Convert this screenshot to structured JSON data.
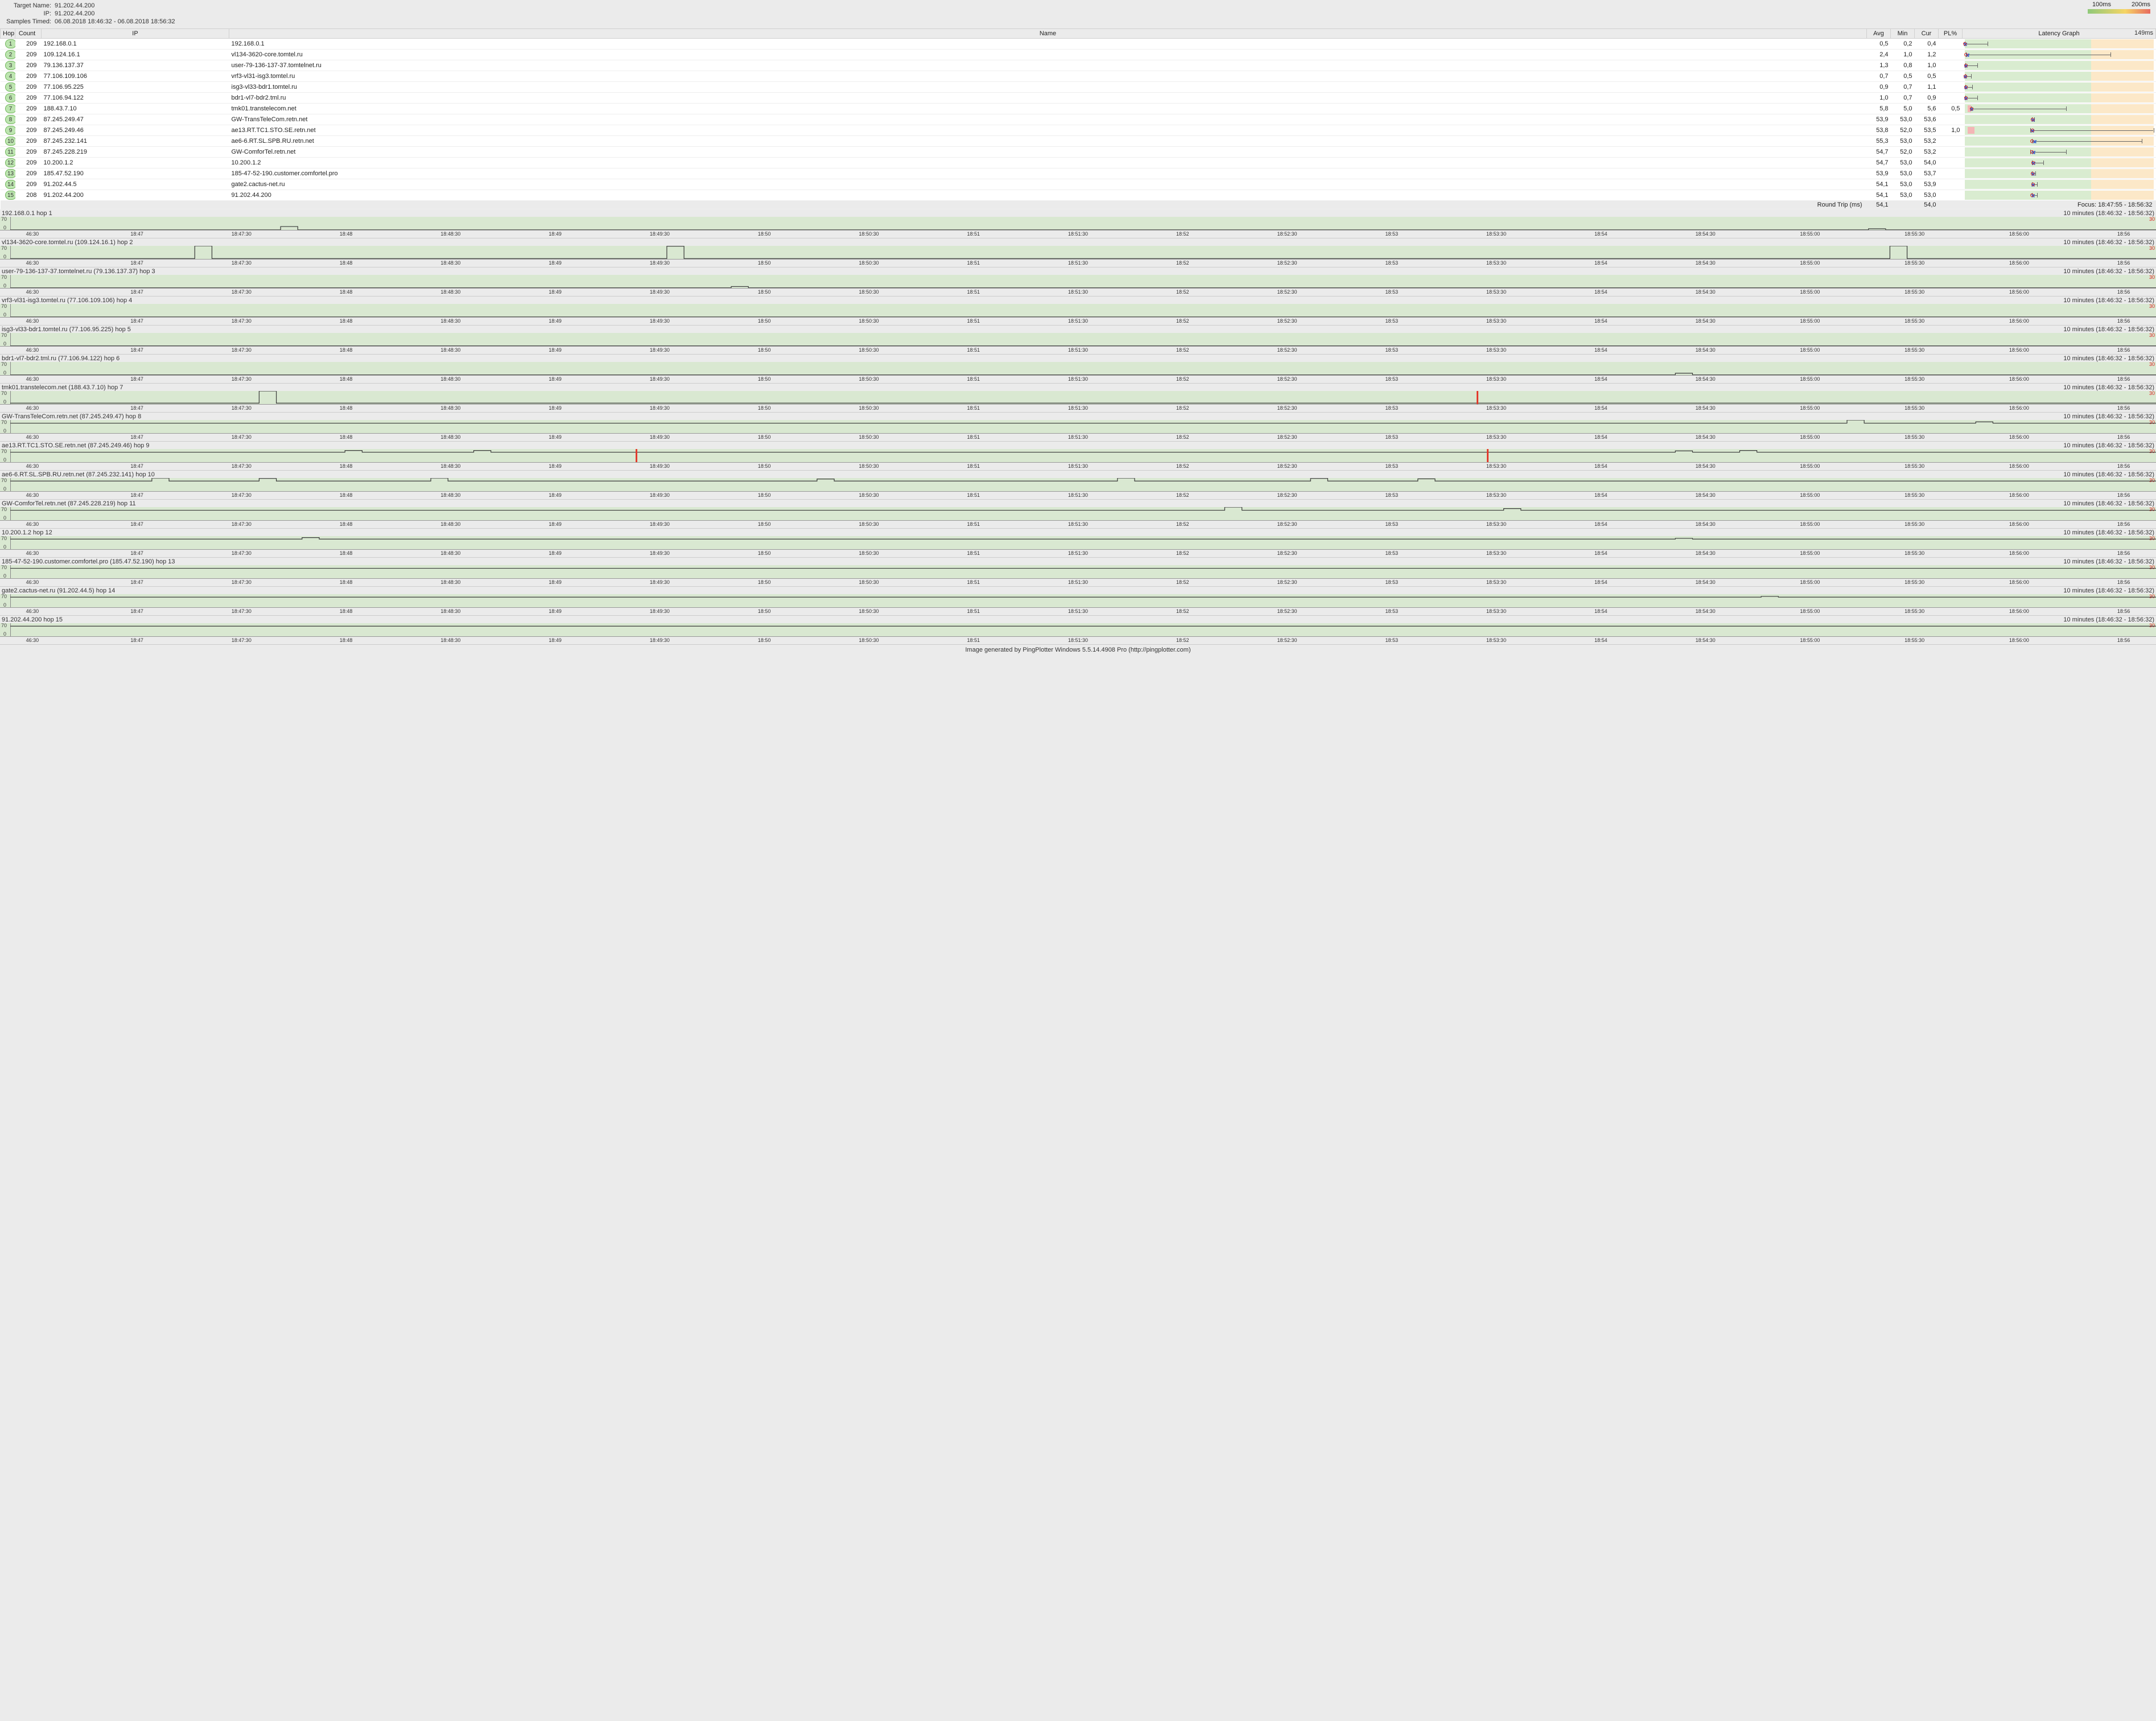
{
  "header": {
    "target_name_label": "Target Name:",
    "target_name": "91.202.44.200",
    "ip_label": "IP:",
    "ip": "91.202.44.200",
    "samples_label": "Samples Timed:",
    "samples": "06.08.2018 18:46:32 - 06.08.2018 18:56:32"
  },
  "legend": {
    "ms100": "100ms",
    "ms200": "200ms"
  },
  "columns": {
    "hop": "Hop",
    "count": "Count",
    "ip": "IP",
    "name": "Name",
    "avg": "Avg",
    "min": "Min",
    "cur": "Cur",
    "pl": "PL%",
    "graph": "Latency Graph",
    "graph_max": "149ms"
  },
  "latency_graph": {
    "max_ms": 149,
    "good_ms": 100,
    "warn_ms": 200,
    "good_color": "#d9ecd0",
    "warn_color": "#fce8c8"
  },
  "hop_colors": {
    "fill": "#bde5b0",
    "border": "#6fb45a",
    "text": "#333"
  },
  "hops": [
    {
      "n": 1,
      "count": 209,
      "ip": "192.168.0.1",
      "name": "192.168.0.1",
      "avg": "0,5",
      "min": "0,2",
      "cur": "0,4",
      "pl": "",
      "avg_ms": 0.5,
      "min_ms": 0.2,
      "max_ms": 18,
      "cur_ms": 0.4
    },
    {
      "n": 2,
      "count": 209,
      "ip": "109.124.16.1",
      "name": "vl134-3620-core.tomtel.ru",
      "avg": "2,4",
      "min": "1,0",
      "cur": "1,2",
      "pl": "",
      "avg_ms": 2.4,
      "min_ms": 1.0,
      "max_ms": 115,
      "cur_ms": 1.2
    },
    {
      "n": 3,
      "count": 209,
      "ip": "79.136.137.37",
      "name": "user-79-136-137-37.tomtelnet.ru",
      "avg": "1,3",
      "min": "0,8",
      "cur": "1,0",
      "pl": "",
      "avg_ms": 1.3,
      "min_ms": 0.8,
      "max_ms": 10,
      "cur_ms": 1.0
    },
    {
      "n": 4,
      "count": 209,
      "ip": "77.106.109.106",
      "name": "vrf3-vl31-isg3.tomtel.ru",
      "avg": "0,7",
      "min": "0,5",
      "cur": "0,5",
      "pl": "",
      "avg_ms": 0.7,
      "min_ms": 0.5,
      "max_ms": 5,
      "cur_ms": 0.5
    },
    {
      "n": 5,
      "count": 209,
      "ip": "77.106.95.225",
      "name": "isg3-vl33-bdr1.tomtel.ru",
      "avg": "0,9",
      "min": "0,7",
      "cur": "1,1",
      "pl": "",
      "avg_ms": 0.9,
      "min_ms": 0.7,
      "max_ms": 6,
      "cur_ms": 1.1
    },
    {
      "n": 6,
      "count": 209,
      "ip": "77.106.94.122",
      "name": "bdr1-vl7-bdr2.tml.ru",
      "avg": "1,0",
      "min": "0,7",
      "cur": "0,9",
      "pl": "",
      "avg_ms": 1.0,
      "min_ms": 0.7,
      "max_ms": 10,
      "cur_ms": 0.9
    },
    {
      "n": 7,
      "count": 209,
      "ip": "188.43.7.10",
      "name": "tmk01.transtelecom.net",
      "avg": "5,8",
      "min": "5,0",
      "cur": "5,6",
      "pl": "0,5",
      "avg_ms": 5.8,
      "min_ms": 5.0,
      "max_ms": 80,
      "cur_ms": 5.6
    },
    {
      "n": 8,
      "count": 209,
      "ip": "87.245.249.47",
      "name": "GW-TransTeleCom.retn.net",
      "avg": "53,9",
      "min": "53,0",
      "cur": "53,6",
      "pl": "",
      "avg_ms": 53.9,
      "min_ms": 53.0,
      "max_ms": 55,
      "cur_ms": 53.6
    },
    {
      "n": 9,
      "count": 209,
      "ip": "87.245.249.46",
      "name": "ae13.RT.TC1.STO.SE.retn.net",
      "avg": "53,8",
      "min": "52,0",
      "cur": "53,5",
      "pl": "1,0",
      "avg_ms": 53.8,
      "min_ms": 52.0,
      "max_ms": 149,
      "cur_ms": 53.5
    },
    {
      "n": 10,
      "count": 209,
      "ip": "87.245.232.141",
      "name": "ae6-6.RT.SL.SPB.RU.retn.net",
      "avg": "55,3",
      "min": "53,0",
      "cur": "53,2",
      "pl": "",
      "avg_ms": 55.3,
      "min_ms": 53.0,
      "max_ms": 140,
      "cur_ms": 53.2
    },
    {
      "n": 11,
      "count": 209,
      "ip": "87.245.228.219",
      "name": "GW-ComforTel.retn.net",
      "avg": "54,7",
      "min": "52,0",
      "cur": "53,2",
      "pl": "",
      "avg_ms": 54.7,
      "min_ms": 52.0,
      "max_ms": 80,
      "cur_ms": 53.2
    },
    {
      "n": 12,
      "count": 209,
      "ip": "10.200.1.2",
      "name": "10.200.1.2",
      "avg": "54,7",
      "min": "53,0",
      "cur": "54,0",
      "pl": "",
      "avg_ms": 54.7,
      "min_ms": 53.0,
      "max_ms": 62,
      "cur_ms": 54.0
    },
    {
      "n": 13,
      "count": 209,
      "ip": "185.47.52.190",
      "name": "185-47-52-190.customer.comfortel.pro",
      "avg": "53,9",
      "min": "53,0",
      "cur": "53,7",
      "pl": "",
      "avg_ms": 53.9,
      "min_ms": 53.0,
      "max_ms": 56,
      "cur_ms": 53.7
    },
    {
      "n": 14,
      "count": 209,
      "ip": "91.202.44.5",
      "name": "gate2.cactus-net.ru",
      "avg": "54,1",
      "min": "53,0",
      "cur": "53,9",
      "pl": "",
      "avg_ms": 54.1,
      "min_ms": 53.0,
      "max_ms": 57,
      "cur_ms": 53.9
    },
    {
      "n": 15,
      "count": 208,
      "ip": "91.202.44.200",
      "name": "91.202.44.200",
      "avg": "54,1",
      "min": "53,0",
      "cur": "53,0",
      "pl": "",
      "avg_ms": 54.1,
      "min_ms": 53.0,
      "max_ms": 57,
      "cur_ms": 53.0
    }
  ],
  "round_trip": {
    "label": "Round Trip (ms)",
    "avg": "54,1",
    "cur": "54,0"
  },
  "focus": {
    "label": "Focus:",
    "range": "18:47:55 - 18:56:32"
  },
  "timeline": {
    "y_max": 70,
    "y_min": 0,
    "y_max_right": 30,
    "range_label": "10 minutes (18:46:32 - 18:56:32)",
    "x_ticks": [
      "46:30",
      "18:47",
      "18:47:30",
      "18:48",
      "18:48:30",
      "18:49",
      "18:49:30",
      "18:50",
      "18:50:30",
      "18:51",
      "18:51:30",
      "18:52",
      "18:52:30",
      "18:53",
      "18:53:30",
      "18:54",
      "18:54:30",
      "18:55:00",
      "18:55:30",
      "18:56:00",
      "18:56"
    ],
    "strips": [
      {
        "title": "192.168.0.1 hop 1",
        "base": 0.5,
        "spikes": [
          {
            "x": 0.13,
            "h": 18
          },
          {
            "x": 0.87,
            "h": 6
          }
        ],
        "losses": []
      },
      {
        "title": "vl134-3620-core.tomtel.ru (109.124.16.1) hop 2",
        "base": 2,
        "spikes": [
          {
            "x": 0.09,
            "h": 70
          },
          {
            "x": 0.31,
            "h": 68
          },
          {
            "x": 0.88,
            "h": 70
          }
        ],
        "losses": []
      },
      {
        "title": "user-79-136-137-37.tomtelnet.ru (79.136.137.37) hop 3",
        "base": 1,
        "spikes": [
          {
            "x": 0.34,
            "h": 8
          }
        ],
        "losses": []
      },
      {
        "title": "vrf3-vl31-isg3.tomtel.ru (77.106.109.106) hop 4",
        "base": 0.7,
        "spikes": [],
        "losses": []
      },
      {
        "title": "isg3-vl33-bdr1.tomtel.ru (77.106.95.225) hop 5",
        "base": 0.9,
        "spikes": [],
        "losses": []
      },
      {
        "title": "bdr1-vl7-bdr2.tml.ru (77.106.94.122) hop 6",
        "base": 1,
        "spikes": [
          {
            "x": 0.78,
            "h": 10
          }
        ],
        "losses": []
      },
      {
        "title": "tmk01.transtelecom.net (188.43.7.10) hop 7",
        "base": 5,
        "spikes": [
          {
            "x": 0.12,
            "h": 70
          }
        ],
        "losses": [
          {
            "x": 0.68
          }
        ]
      },
      {
        "title": "GW-TransTeleCom.retn.net (87.245.249.47) hop 8",
        "base": 53,
        "spikes": [
          {
            "x": 0.86,
            "h": 70
          },
          {
            "x": 0.92,
            "h": 60
          }
        ],
        "losses": []
      },
      {
        "title": "ae13.RT.TC1.STO.SE.retn.net (87.245.249.46) hop 9",
        "base": 53,
        "spikes": [
          {
            "x": 0.16,
            "h": 62
          },
          {
            "x": 0.22,
            "h": 62
          },
          {
            "x": 0.78,
            "h": 60
          },
          {
            "x": 0.81,
            "h": 62
          }
        ],
        "losses": [
          {
            "x": 0.29
          },
          {
            "x": 0.685
          }
        ]
      },
      {
        "title": "ae6-6.RT.SL.SPB.RU.retn.net (87.245.232.141) hop 10",
        "base": 54,
        "spikes": [
          {
            "x": 0.07,
            "h": 70
          },
          {
            "x": 0.12,
            "h": 68
          },
          {
            "x": 0.2,
            "h": 70
          },
          {
            "x": 0.38,
            "h": 65
          },
          {
            "x": 0.52,
            "h": 70
          },
          {
            "x": 0.61,
            "h": 68
          },
          {
            "x": 0.66,
            "h": 66
          }
        ],
        "losses": []
      },
      {
        "title": "GW-ComforTel.retn.net (87.245.228.219) hop 11",
        "base": 53,
        "spikes": [
          {
            "x": 0.57,
            "h": 70
          },
          {
            "x": 0.7,
            "h": 62
          }
        ],
        "losses": []
      },
      {
        "title": "10.200.1.2 hop 12",
        "base": 54,
        "spikes": [
          {
            "x": 0.14,
            "h": 62
          },
          {
            "x": 0.78,
            "h": 58
          }
        ],
        "losses": []
      },
      {
        "title": "185-47-52-190.customer.comfortel.pro (185.47.52.190) hop 13",
        "base": 53,
        "spikes": [],
        "losses": []
      },
      {
        "title": "gate2.cactus-net.ru (91.202.44.5) hop 14",
        "base": 54,
        "spikes": [
          {
            "x": 0.82,
            "h": 58
          }
        ],
        "losses": []
      },
      {
        "title": "91.202.44.200 hop 15",
        "base": 54,
        "spikes": [],
        "losses": []
      }
    ]
  },
  "footer": "Image generated by PingPlotter Windows 5.5.14.4908 Pro (http://pingplotter.com)"
}
